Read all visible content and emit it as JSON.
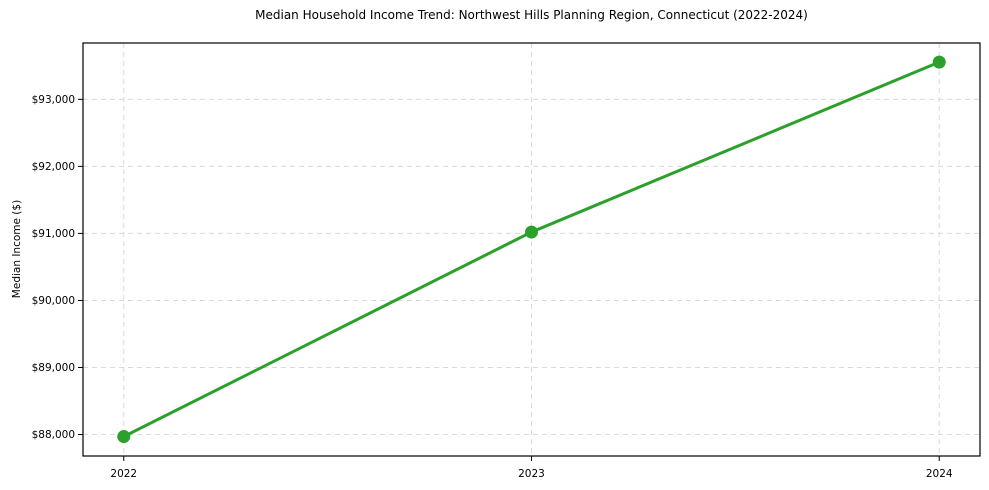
{
  "chart_data": {
    "type": "line",
    "title": "Median Household Income Trend: Northwest Hills Planning Region, Connecticut (2022-2024)",
    "xlabel": "",
    "ylabel": "Median Income ($)",
    "x": [
      2022,
      2023,
      2024
    ],
    "x_tick_labels": [
      "2022",
      "2023",
      "2024"
    ],
    "series": [
      {
        "name": "Median Household Income",
        "values": [
          87970,
          91020,
          93555
        ],
        "color": "#2ca02c",
        "line_width": 3,
        "marker": "circle",
        "marker_radius": 6.5
      }
    ],
    "xlim": [
      2021.9,
      2024.1
    ],
    "ylim": [
      87680,
      93840
    ],
    "yticks": {
      "values": [
        88000,
        89000,
        90000,
        91000,
        92000,
        93000
      ],
      "labels": [
        "$88,000",
        "$89,000",
        "$90,000",
        "$91,000",
        "$92,000",
        "$93,000"
      ]
    },
    "grid": {
      "show": true,
      "style": "dashed",
      "color": "#d9d9d9"
    },
    "legend": {
      "show": false
    },
    "axes": {
      "frame_color": "#000000",
      "tick_color": "#000000",
      "text_color": "#000000",
      "background": "#ffffff"
    }
  }
}
